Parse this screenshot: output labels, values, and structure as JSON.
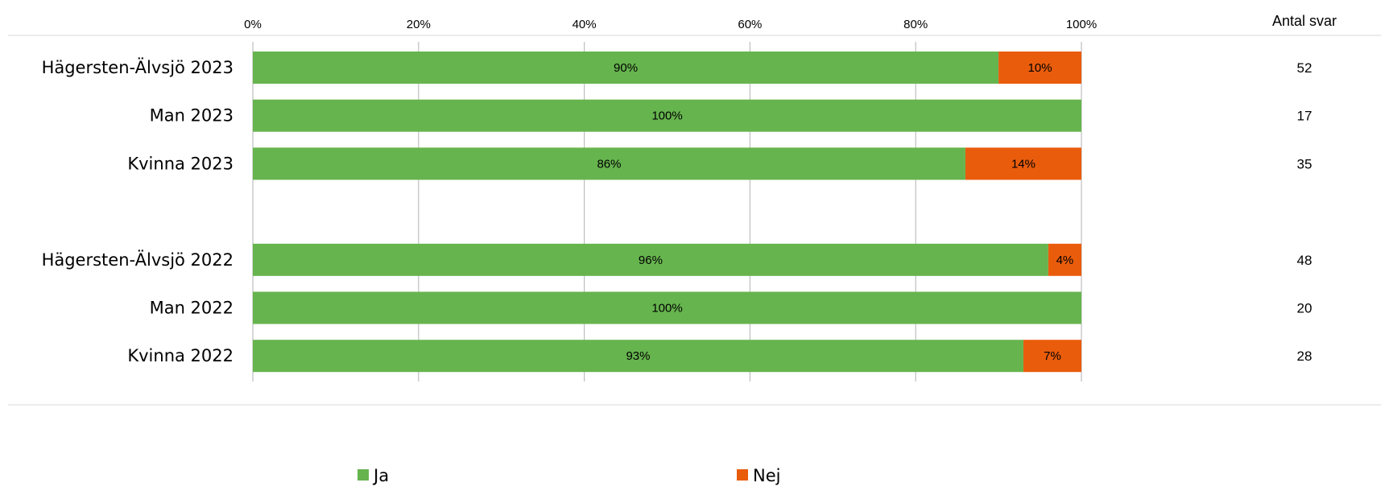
{
  "chart_data": {
    "type": "bar",
    "orientation": "horizontal",
    "stacked": true,
    "percent_stacked": true,
    "categories": [
      "Hägersten-Älvsjö 2023",
      "Man 2023",
      "Kvinna 2023",
      "",
      "Hägersten-Älvsjö 2022",
      "Man 2022",
      "Kvinna 2022"
    ],
    "series": [
      {
        "name": "Ja",
        "color": "#66b44e",
        "values": [
          90,
          100,
          86,
          null,
          96,
          100,
          93
        ],
        "labels": [
          "90%",
          "100%",
          "86%",
          "",
          "96%",
          "100%",
          "93%"
        ]
      },
      {
        "name": "Nej",
        "color": "#e95c0c",
        "values": [
          10,
          0,
          14,
          null,
          4,
          0,
          7
        ],
        "labels": [
          "10%",
          "",
          "14%",
          "",
          "4%",
          "",
          "7%"
        ]
      }
    ],
    "xlim": [
      0,
      100
    ],
    "x_ticks": [
      "0%",
      "20%",
      "40%",
      "60%",
      "80%",
      "100%"
    ],
    "x_tick_values": [
      0,
      20,
      40,
      60,
      80,
      100
    ],
    "x_axis_position": "top",
    "grid": true,
    "legend": {
      "position": "bottom",
      "entries": [
        "Ja",
        "Nej"
      ]
    },
    "side_column": {
      "header": "Antal svar",
      "values": [
        "52",
        "17",
        "35",
        "",
        "48",
        "20",
        "28"
      ]
    }
  }
}
